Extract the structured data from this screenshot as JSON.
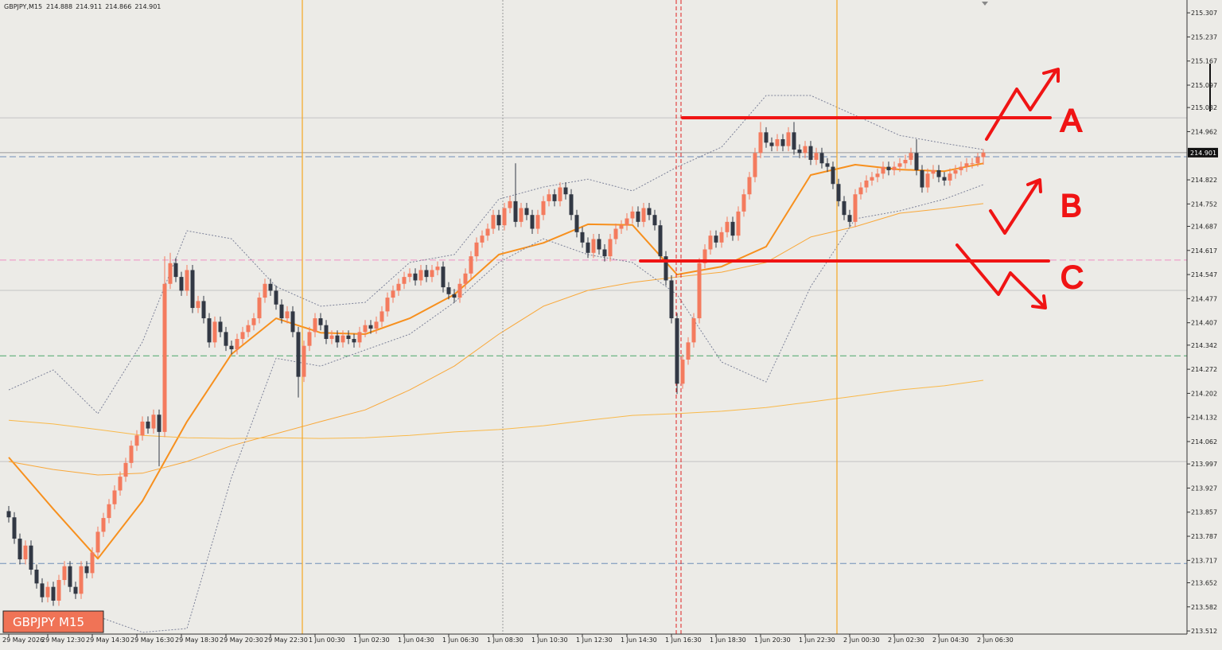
{
  "chart_data": {
    "type": "candlestick",
    "title": "GBPJPY,M15",
    "symbol_label": "GBPJPY M15",
    "up_color": "#f47b5e",
    "down_color": "#323844",
    "ylim": [
      213.496,
      215.335
    ],
    "yticks": [
      215.307,
      215.237,
      215.167,
      215.097,
      215.032,
      214.962,
      214.822,
      214.752,
      214.687,
      214.617,
      214.547,
      214.477,
      214.407,
      214.342,
      214.272,
      214.202,
      214.132,
      214.062,
      213.997,
      213.927,
      213.857,
      213.787,
      213.717,
      213.652,
      213.582,
      213.512
    ],
    "categories": [
      "29 May 2026",
      null,
      null,
      null,
      null,
      null,
      null,
      "29 May 12:30",
      null,
      null,
      null,
      null,
      null,
      null,
      null,
      "29 May 14:30",
      null,
      null,
      null,
      null,
      null,
      null,
      null,
      "29 May 16:30",
      null,
      null,
      null,
      null,
      null,
      null,
      null,
      "29 May 18:30",
      null,
      null,
      null,
      null,
      null,
      null,
      null,
      "29 May 20:30",
      null,
      null,
      null,
      null,
      null,
      null,
      null,
      "29 May 22:30",
      null,
      null,
      null,
      null,
      null,
      null,
      null,
      "1 Jun 00:30",
      null,
      null,
      null,
      null,
      null,
      null,
      null,
      "1 Jun 02:30",
      null,
      null,
      null,
      null,
      null,
      null,
      null,
      "1 Jun 04:30",
      null,
      null,
      null,
      null,
      null,
      null,
      null,
      "1 Jun 06:30",
      null,
      null,
      null,
      null,
      null,
      null,
      null,
      "1 Jun 08:30",
      null,
      null,
      null,
      null,
      null,
      null,
      null,
      "1 Jun 10:30",
      null,
      null,
      null,
      null,
      null,
      null,
      null,
      "1 Jun 12:30",
      null,
      null,
      null,
      null,
      null,
      null,
      null,
      "1 Jun 14:30",
      null,
      null,
      null,
      null,
      null,
      null,
      null,
      "1 Jun 16:30",
      null,
      null,
      null,
      null,
      null,
      null,
      null,
      "1 Jun 18:30",
      null,
      null,
      null,
      null,
      null,
      null,
      null,
      "1 Jun 20:30",
      null,
      null,
      null,
      null,
      null,
      null,
      null,
      "1 Jun 22:30",
      null,
      null,
      null,
      null,
      null,
      null,
      null,
      "2 Jun 00:30",
      null,
      null,
      null,
      null,
      null,
      null,
      null,
      "2 Jun 02:30",
      null,
      null,
      null,
      null,
      null,
      null,
      null,
      "2 Jun 04:30",
      null,
      null,
      null,
      null,
      null,
      null,
      null,
      "2 Jun 06:30"
    ],
    "open": [
      213.86,
      213.842,
      213.78,
      213.72,
      213.76,
      213.69,
      213.65,
      213.61,
      213.64,
      213.6,
      213.66,
      213.7,
      213.64,
      213.62,
      213.7,
      213.68,
      213.74,
      213.8,
      213.84,
      213.88,
      213.92,
      213.96,
      214.0,
      214.05,
      214.08,
      214.12,
      214.1,
      214.14,
      214.09,
      214.52,
      214.58,
      214.54,
      214.5,
      214.56,
      214.45,
      214.47,
      214.42,
      214.35,
      214.41,
      214.38,
      214.34,
      214.33,
      214.36,
      214.38,
      214.4,
      214.42,
      214.48,
      214.52,
      214.5,
      214.46,
      214.42,
      214.44,
      214.38,
      214.25,
      214.34,
      214.38,
      214.42,
      214.4,
      214.36,
      214.37,
      214.35,
      214.37,
      214.36,
      214.35,
      214.38,
      214.4,
      214.39,
      214.41,
      214.44,
      214.48,
      214.5,
      214.52,
      214.54,
      214.55,
      214.53,
      214.56,
      214.54,
      214.56,
      214.57,
      214.51,
      214.49,
      214.48,
      214.52,
      214.55,
      214.6,
      214.64,
      214.66,
      214.68,
      214.72,
      214.69,
      214.74,
      214.76,
      214.7,
      214.74,
      214.72,
      214.68,
      214.72,
      214.76,
      214.78,
      214.76,
      214.8,
      214.78,
      214.72,
      214.67,
      214.64,
      214.61,
      214.65,
      214.62,
      214.6,
      214.65,
      214.68,
      214.69,
      214.71,
      214.73,
      214.7,
      214.74,
      214.72,
      214.69,
      214.6,
      214.53,
      214.42,
      214.23,
      214.3,
      214.35,
      214.42,
      214.58,
      214.62,
      214.66,
      214.64,
      214.67,
      214.7,
      214.66,
      214.73,
      214.78,
      214.83,
      214.9,
      214.96,
      214.93,
      214.92,
      214.94,
      214.92,
      214.96,
      214.91,
      214.9,
      214.92,
      214.88,
      214.9,
      214.87,
      214.86,
      214.81,
      214.76,
      214.72,
      214.7,
      214.78,
      214.8,
      214.82,
      214.83,
      214.84,
      214.86,
      214.85,
      214.86,
      214.87,
      214.88,
      214.9,
      214.85,
      214.8,
      214.84,
      214.85,
      214.83,
      214.82,
      214.84,
      214.85,
      214.86,
      214.87,
      214.87,
      214.888
    ],
    "high": [
      213.875,
      213.857,
      213.795,
      213.775,
      213.775,
      213.705,
      213.665,
      213.655,
      213.655,
      213.675,
      213.715,
      213.715,
      213.655,
      213.715,
      213.715,
      213.755,
      213.815,
      213.855,
      213.895,
      213.935,
      213.975,
      214.015,
      214.065,
      214.095,
      214.135,
      214.135,
      214.155,
      214.155,
      214.6,
      214.61,
      214.595,
      214.555,
      214.575,
      214.575,
      214.485,
      214.485,
      214.435,
      214.425,
      214.425,
      214.395,
      214.355,
      214.375,
      214.395,
      214.415,
      214.435,
      214.495,
      214.535,
      214.535,
      214.515,
      214.475,
      214.455,
      214.455,
      214.395,
      214.355,
      214.395,
      214.435,
      214.435,
      214.415,
      214.385,
      214.385,
      214.385,
      214.385,
      214.375,
      214.395,
      214.415,
      214.415,
      214.425,
      214.455,
      214.495,
      214.515,
      214.535,
      214.555,
      214.565,
      214.565,
      214.575,
      214.575,
      214.575,
      214.585,
      214.585,
      214.525,
      214.505,
      214.535,
      214.565,
      214.615,
      214.655,
      214.675,
      214.695,
      214.735,
      214.735,
      214.755,
      214.775,
      214.87,
      214.755,
      214.755,
      214.735,
      214.735,
      214.775,
      214.795,
      214.795,
      214.815,
      214.815,
      214.795,
      214.735,
      214.685,
      214.655,
      214.665,
      214.665,
      214.635,
      214.665,
      214.695,
      214.705,
      214.725,
      214.745,
      214.745,
      214.755,
      214.755,
      214.735,
      214.705,
      214.615,
      214.545,
      214.435,
      214.315,
      214.365,
      214.435,
      214.595,
      214.635,
      214.675,
      214.675,
      214.685,
      214.715,
      214.715,
      214.745,
      214.795,
      214.845,
      214.915,
      214.99,
      214.975,
      214.945,
      214.955,
      214.955,
      214.975,
      214.99,
      214.925,
      214.935,
      214.935,
      214.915,
      214.915,
      214.885,
      214.875,
      214.825,
      214.775,
      214.735,
      214.795,
      214.815,
      214.835,
      214.845,
      214.855,
      214.875,
      214.875,
      214.875,
      214.885,
      214.895,
      214.915,
      214.94,
      214.865,
      214.855,
      214.865,
      214.865,
      214.845,
      214.855,
      214.865,
      214.875,
      214.885,
      214.885,
      214.9,
      214.911
    ],
    "low": [
      213.827,
      213.765,
      213.705,
      213.705,
      213.675,
      213.635,
      213.595,
      213.595,
      213.585,
      213.585,
      213.645,
      213.625,
      213.605,
      213.605,
      213.665,
      213.665,
      213.725,
      213.785,
      213.825,
      213.865,
      213.905,
      213.945,
      213.985,
      214.035,
      214.065,
      214.085,
      214.085,
      213.99,
      214.075,
      214.505,
      214.525,
      214.485,
      214.485,
      214.435,
      214.435,
      214.405,
      214.335,
      214.335,
      214.365,
      214.325,
      214.315,
      214.315,
      214.345,
      214.365,
      214.385,
      214.405,
      214.465,
      214.485,
      214.445,
      214.405,
      214.405,
      214.365,
      214.19,
      214.235,
      214.325,
      214.365,
      214.385,
      214.345,
      214.345,
      214.335,
      214.335,
      214.345,
      214.335,
      214.335,
      214.365,
      214.375,
      214.375,
      214.395,
      214.425,
      214.465,
      214.485,
      214.505,
      214.525,
      214.515,
      214.515,
      214.525,
      214.525,
      214.545,
      214.495,
      214.475,
      214.465,
      214.465,
      214.505,
      214.535,
      214.585,
      214.625,
      214.645,
      214.665,
      214.675,
      214.675,
      214.725,
      214.685,
      214.685,
      214.705,
      214.665,
      214.665,
      214.705,
      214.745,
      214.745,
      214.745,
      214.765,
      214.705,
      214.655,
      214.625,
      214.595,
      214.595,
      214.605,
      214.585,
      214.585,
      214.635,
      214.665,
      214.675,
      214.695,
      214.685,
      214.685,
      214.705,
      214.675,
      214.585,
      214.515,
      214.405,
      214.2,
      214.215,
      214.285,
      214.335,
      214.405,
      214.565,
      214.605,
      214.625,
      214.625,
      214.655,
      214.645,
      214.645,
      214.715,
      214.765,
      214.815,
      214.885,
      214.915,
      214.905,
      214.905,
      214.905,
      214.905,
      214.895,
      214.885,
      214.885,
      214.865,
      214.865,
      214.855,
      214.845,
      214.795,
      214.745,
      214.705,
      214.685,
      214.685,
      214.765,
      214.785,
      214.805,
      214.815,
      214.825,
      214.835,
      214.835,
      214.845,
      214.855,
      214.865,
      214.835,
      214.785,
      214.785,
      214.825,
      214.815,
      214.805,
      214.805,
      214.825,
      214.835,
      214.845,
      214.855,
      214.86,
      214.866
    ],
    "close": [
      213.842,
      213.78,
      213.72,
      213.76,
      213.69,
      213.65,
      213.61,
      213.64,
      213.6,
      213.66,
      213.7,
      213.64,
      213.62,
      213.7,
      213.68,
      213.74,
      213.8,
      213.84,
      213.88,
      213.92,
      213.96,
      214.0,
      214.05,
      214.08,
      214.12,
      214.1,
      214.14,
      214.09,
      214.52,
      214.58,
      214.54,
      214.5,
      214.56,
      214.45,
      214.47,
      214.42,
      214.35,
      214.41,
      214.38,
      214.34,
      214.33,
      214.36,
      214.38,
      214.4,
      214.42,
      214.48,
      214.52,
      214.5,
      214.46,
      214.42,
      214.44,
      214.38,
      214.25,
      214.34,
      214.38,
      214.42,
      214.4,
      214.36,
      214.37,
      214.35,
      214.37,
      214.36,
      214.35,
      214.38,
      214.4,
      214.39,
      214.41,
      214.44,
      214.48,
      214.5,
      214.52,
      214.54,
      214.55,
      214.53,
      214.56,
      214.54,
      214.56,
      214.57,
      214.51,
      214.49,
      214.48,
      214.52,
      214.55,
      214.6,
      214.64,
      214.66,
      214.68,
      214.72,
      214.69,
      214.74,
      214.76,
      214.7,
      214.74,
      214.72,
      214.68,
      214.72,
      214.76,
      214.78,
      214.76,
      214.8,
      214.78,
      214.72,
      214.67,
      214.64,
      214.61,
      214.65,
      214.62,
      214.6,
      214.65,
      214.68,
      214.69,
      214.71,
      214.73,
      214.7,
      214.74,
      214.72,
      214.69,
      214.6,
      214.53,
      214.42,
      214.23,
      214.3,
      214.35,
      214.42,
      214.58,
      214.62,
      214.66,
      214.64,
      214.67,
      214.7,
      214.66,
      214.73,
      214.78,
      214.83,
      214.9,
      214.96,
      214.93,
      214.92,
      214.94,
      214.92,
      214.96,
      214.91,
      214.9,
      214.92,
      214.88,
      214.9,
      214.87,
      214.86,
      214.81,
      214.76,
      214.72,
      214.7,
      214.78,
      214.8,
      214.82,
      214.83,
      214.84,
      214.86,
      214.85,
      214.86,
      214.87,
      214.88,
      214.9,
      214.85,
      214.8,
      214.84,
      214.85,
      214.83,
      214.82,
      214.84,
      214.85,
      214.86,
      214.87,
      214.87,
      214.888,
      214.901
    ],
    "indicator_x": [
      0,
      8,
      16,
      24,
      32,
      40,
      48,
      56,
      64,
      72,
      80,
      88,
      96,
      104,
      112,
      120,
      128,
      136,
      144,
      152,
      160,
      168,
      175
    ],
    "indicators": [
      {
        "color": "#f7901e",
        "bold": true,
        "dotted": false,
        "values": [
          214.016,
          213.866,
          213.722,
          213.889,
          214.12,
          214.316,
          214.42,
          214.378,
          214.374,
          214.42,
          214.489,
          214.605,
          214.639,
          214.693,
          214.691,
          214.547,
          214.57,
          214.628,
          214.836,
          214.866,
          214.852,
          214.847,
          214.87
        ]
      },
      {
        "color": "#f9a83a",
        "bold": false,
        "dotted": false,
        "values": [
          214.004,
          213.981,
          213.965,
          213.97,
          214.004,
          214.05,
          214.085,
          214.12,
          214.154,
          214.212,
          214.281,
          214.374,
          214.455,
          214.501,
          214.524,
          214.54,
          214.554,
          214.582,
          214.656,
          214.686,
          214.725,
          214.739,
          214.753
        ]
      },
      {
        "color": "#f9b94a",
        "bold": false,
        "dotted": false,
        "values": [
          214.124,
          214.113,
          214.097,
          214.08,
          214.073,
          214.071,
          214.073,
          214.071,
          214.073,
          214.08,
          214.09,
          214.097,
          214.108,
          214.124,
          214.138,
          214.143,
          214.15,
          214.161,
          214.177,
          214.194,
          214.212,
          214.224,
          214.24
        ]
      },
      {
        "color": "#7d8299",
        "bold": false,
        "dotted": true,
        "values": [
          214.212,
          214.27,
          214.143,
          214.351,
          214.674,
          214.651,
          214.512,
          214.455,
          214.466,
          214.582,
          214.605,
          214.766,
          214.801,
          214.824,
          214.79,
          214.859,
          214.917,
          215.067,
          215.067,
          215.009,
          214.951,
          214.928,
          214.91
        ]
      },
      {
        "color": "#7d8299",
        "bold": false,
        "dotted": true,
        "values": [
          null,
          null,
          213.554,
          213.508,
          213.519,
          213.958,
          214.304,
          214.281,
          214.328,
          214.374,
          214.466,
          214.582,
          214.651,
          214.605,
          214.582,
          214.489,
          214.293,
          214.235,
          214.512,
          214.709,
          214.732,
          214.766,
          214.808
        ]
      }
    ],
    "levels": [
      {
        "value": 215.002,
        "color": "#c4c4c4",
        "dashed": false
      },
      {
        "value": 214.889,
        "color": "#6f8fb8",
        "dashed": true
      },
      {
        "value": 214.589,
        "color": "#ee8fc4",
        "dashed": true
      },
      {
        "value": 214.501,
        "color": "#c4c4c4",
        "dashed": false
      },
      {
        "value": 214.311,
        "color": "#4aa86a",
        "dashed": true
      },
      {
        "value": 214.004,
        "color": "#c4c4c4",
        "dashed": false
      },
      {
        "value": 213.708,
        "color": "#6f8fb8",
        "dashed": true
      }
    ],
    "annotations": [
      "A",
      "B",
      "C"
    ]
  }
}
